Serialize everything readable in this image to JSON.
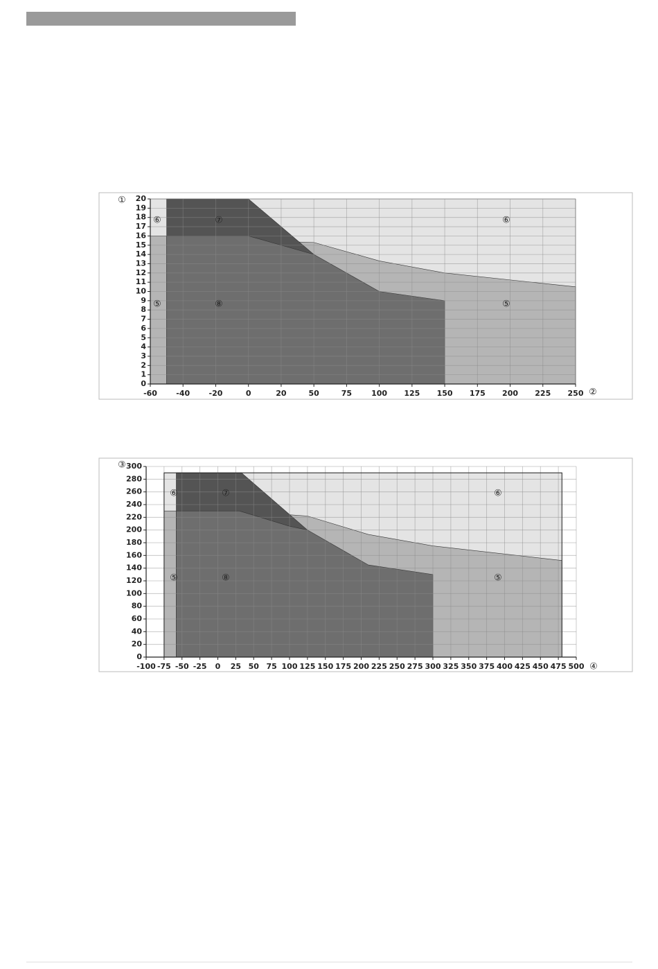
{
  "chart_data": [
    {
      "type": "area",
      "x_label": "②",
      "y_label": "①",
      "xlim": [
        -60,
        250
      ],
      "xticks": [
        -60,
        -40,
        -20,
        0,
        20,
        50,
        75,
        100,
        125,
        150,
        175,
        200,
        225,
        250
      ],
      "ylim": [
        0,
        20
      ],
      "yticks": [
        0,
        1,
        2,
        3,
        4,
        5,
        6,
        7,
        8,
        9,
        10,
        11,
        12,
        13,
        14,
        15,
        16,
        17,
        18,
        19,
        20
      ],
      "grid": true,
      "series": [
        {
          "name": "⑥",
          "color": "#e4e4e4",
          "x": [
            -60,
            250
          ],
          "values": [
            20,
            20
          ]
        },
        {
          "name": "⑤",
          "color": "#b5b5b5",
          "x": [
            -60,
            0,
            20,
            50,
            100,
            150,
            250
          ],
          "values": [
            16,
            16,
            15.4,
            15.3,
            13.3,
            12,
            10.5
          ]
        },
        {
          "name": "⑦",
          "color": "#545454",
          "x": [
            -50,
            0,
            50
          ],
          "values": [
            20,
            20,
            14
          ]
        },
        {
          "name": "⑧",
          "color": "#6e6e6e",
          "x": [
            -50,
            0,
            20,
            50,
            100,
            150
          ],
          "values": [
            16,
            16,
            15,
            14,
            10,
            9
          ]
        }
      ]
    },
    {
      "type": "area",
      "x_label": "④",
      "y_label": "③",
      "xlim": [
        -100,
        500
      ],
      "xticks": [
        -100,
        -75,
        -50,
        -25,
        0,
        25,
        50,
        75,
        100,
        125,
        150,
        175,
        200,
        225,
        250,
        275,
        300,
        325,
        350,
        375,
        400,
        425,
        450,
        475,
        500
      ],
      "ylim": [
        0,
        300
      ],
      "yticks": [
        0,
        20,
        40,
        60,
        80,
        100,
        120,
        140,
        160,
        180,
        200,
        220,
        240,
        260,
        280,
        300
      ],
      "grid": true,
      "series": [
        {
          "name": "⑥",
          "color": "#e4e4e4",
          "x": [
            -75,
            480
          ],
          "values": [
            290,
            290
          ]
        },
        {
          "name": "⑤",
          "color": "#b5b5b5",
          "x": [
            -75,
            30,
            100,
            125,
            210,
            300,
            480
          ],
          "values": [
            230,
            230,
            224,
            222,
            193,
            175,
            152
          ]
        },
        {
          "name": "⑦",
          "color": "#545454",
          "x": [
            -58,
            33,
            125
          ],
          "values": [
            290,
            290,
            200
          ]
        },
        {
          "name": "⑧",
          "color": "#6e6e6e",
          "x": [
            -58,
            30,
            100,
            125,
            210,
            300
          ],
          "values": [
            230,
            230,
            206,
            200,
            145,
            130
          ]
        }
      ]
    }
  ]
}
